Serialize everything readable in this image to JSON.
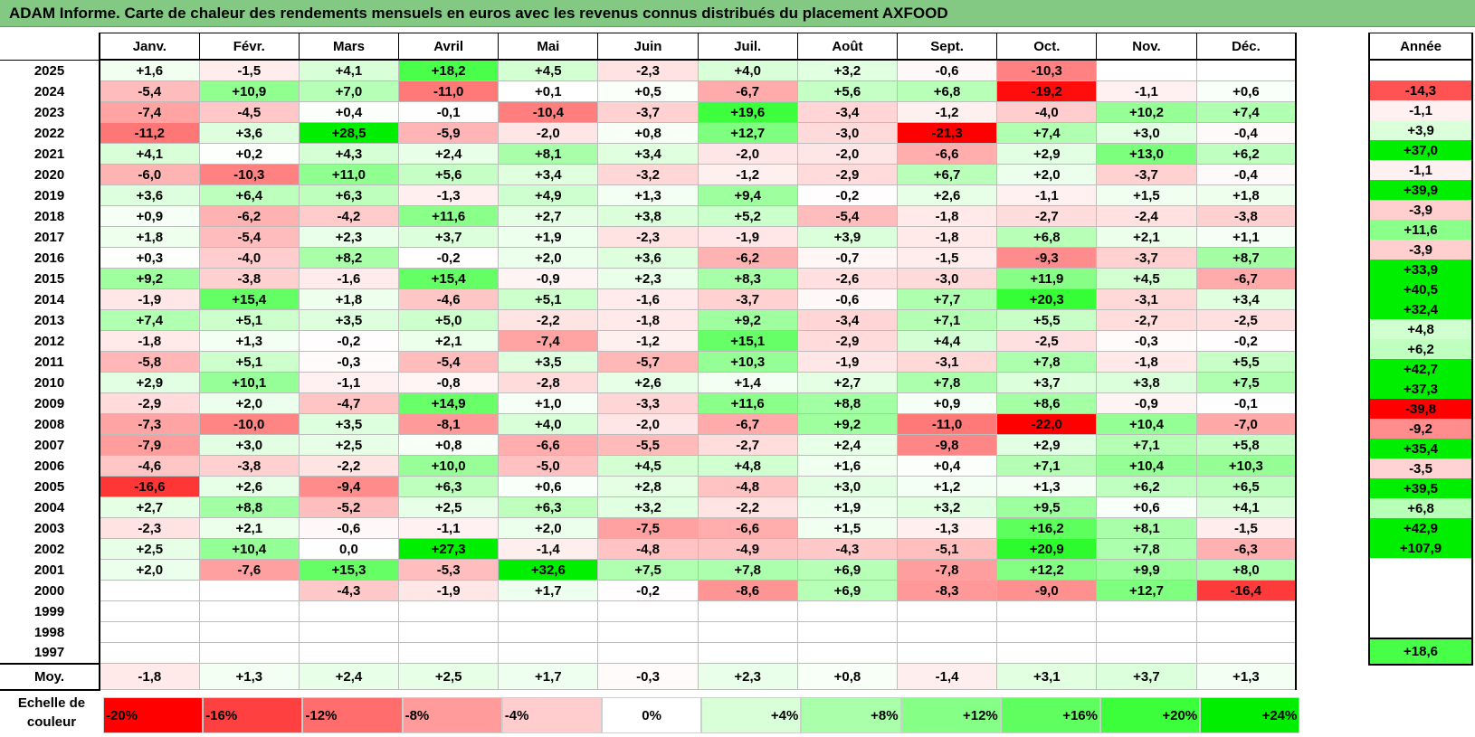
{
  "title": "ADAM Informe. Carte de chaleur des rendements mensuels en euros avec les revenus connus distribués du placement AXFOOD",
  "chart_data": {
    "type": "heatmap",
    "title": "ADAM Informe. Carte de chaleur des rendements mensuels en euros avec les revenus connus distribués du placement AXFOOD",
    "months": [
      "Janv.",
      "Févr.",
      "Mars",
      "Avril",
      "Mai",
      "Juin",
      "Juil.",
      "Août",
      "Sept.",
      "Oct.",
      "Nov.",
      "Déc."
    ],
    "annual_header": "Année",
    "rows": [
      {
        "year": "2025",
        "values": [
          "+1,6",
          "-1,5",
          "+4,1",
          "+18,2",
          "+4,5",
          "-2,3",
          "+4,0",
          "+3,2",
          "-0,6",
          "-10,3",
          "",
          ""
        ],
        "annual": ""
      },
      {
        "year": "2024",
        "values": [
          "-5,4",
          "+10,9",
          "+7,0",
          "-11,0",
          "+0,1",
          "+0,5",
          "-6,7",
          "+5,6",
          "+6,8",
          "-19,2",
          "-1,1",
          "+0,6"
        ],
        "annual": "-14,3"
      },
      {
        "year": "2023",
        "values": [
          "-7,4",
          "-4,5",
          "+0,4",
          "-0,1",
          "-10,4",
          "-3,7",
          "+19,6",
          "-3,4",
          "-1,2",
          "-4,0",
          "+10,2",
          "+7,4"
        ],
        "annual": "-1,1"
      },
      {
        "year": "2022",
        "values": [
          "-11,2",
          "+3,6",
          "+28,5",
          "-5,9",
          "-2,0",
          "+0,8",
          "+12,7",
          "-3,0",
          "-21,3",
          "+7,4",
          "+3,0",
          "-0,4"
        ],
        "annual": "+3,9"
      },
      {
        "year": "2021",
        "values": [
          "+4,1",
          "+0,2",
          "+4,3",
          "+2,4",
          "+8,1",
          "+3,4",
          "-2,0",
          "-2,0",
          "-6,6",
          "+2,9",
          "+13,0",
          "+6,2"
        ],
        "annual": "+37,0"
      },
      {
        "year": "2020",
        "values": [
          "-6,0",
          "-10,3",
          "+11,0",
          "+5,6",
          "+3,4",
          "-3,2",
          "-1,2",
          "-2,9",
          "+6,7",
          "+2,0",
          "-3,7",
          "-0,4"
        ],
        "annual": "-1,1"
      },
      {
        "year": "2019",
        "values": [
          "+3,6",
          "+6,4",
          "+6,3",
          "-1,3",
          "+4,9",
          "+1,3",
          "+9,4",
          "-0,2",
          "+2,6",
          "-1,1",
          "+1,5",
          "+1,8"
        ],
        "annual": "+39,9"
      },
      {
        "year": "2018",
        "values": [
          "+0,9",
          "-6,2",
          "-4,2",
          "+11,6",
          "+2,7",
          "+3,8",
          "+5,2",
          "-5,4",
          "-1,8",
          "-2,7",
          "-2,4",
          "-3,8"
        ],
        "annual": "-3,9"
      },
      {
        "year": "2017",
        "values": [
          "+1,8",
          "-5,4",
          "+2,3",
          "+3,7",
          "+1,9",
          "-2,3",
          "-1,9",
          "+3,9",
          "-1,8",
          "+6,8",
          "+2,1",
          "+1,1"
        ],
        "annual": "+11,6"
      },
      {
        "year": "2016",
        "values": [
          "+0,3",
          "-4,0",
          "+8,2",
          "-0,2",
          "+2,0",
          "+3,6",
          "-6,2",
          "-0,7",
          "-1,5",
          "-9,3",
          "-3,7",
          "+8,7"
        ],
        "annual": "-3,9"
      },
      {
        "year": "2015",
        "values": [
          "+9,2",
          "-3,8",
          "-1,6",
          "+15,4",
          "-0,9",
          "+2,3",
          "+8,3",
          "-2,6",
          "-3,0",
          "+11,9",
          "+4,5",
          "-6,7"
        ],
        "annual": "+33,9"
      },
      {
        "year": "2014",
        "values": [
          "-1,9",
          "+15,4",
          "+1,8",
          "-4,6",
          "+5,1",
          "-1,6",
          "-3,7",
          "-0,6",
          "+7,7",
          "+20,3",
          "-3,1",
          "+3,4"
        ],
        "annual": "+40,5"
      },
      {
        "year": "2013",
        "values": [
          "+7,4",
          "+5,1",
          "+3,5",
          "+5,0",
          "-2,2",
          "-1,8",
          "+9,2",
          "-3,4",
          "+7,1",
          "+5,5",
          "-2,7",
          "-2,5"
        ],
        "annual": "+32,4"
      },
      {
        "year": "2012",
        "values": [
          "-1,8",
          "+1,3",
          "-0,2",
          "+2,1",
          "-7,4",
          "-1,2",
          "+15,1",
          "-2,9",
          "+4,4",
          "-2,5",
          "-0,3",
          "-0,2"
        ],
        "annual": "+4,8"
      },
      {
        "year": "2011",
        "values": [
          "-5,8",
          "+5,1",
          "-0,3",
          "-5,4",
          "+3,5",
          "-5,7",
          "+10,3",
          "-1,9",
          "-3,1",
          "+7,8",
          "-1,8",
          "+5,5"
        ],
        "annual": "+6,2"
      },
      {
        "year": "2010",
        "values": [
          "+2,9",
          "+10,1",
          "-1,1",
          "-0,8",
          "-2,8",
          "+2,6",
          "+1,4",
          "+2,7",
          "+7,8",
          "+3,7",
          "+3,8",
          "+7,5"
        ],
        "annual": "+42,7"
      },
      {
        "year": "2009",
        "values": [
          "-2,9",
          "+2,0",
          "-4,7",
          "+14,9",
          "+1,0",
          "-3,3",
          "+11,6",
          "+8,8",
          "+0,9",
          "+8,6",
          "-0,9",
          "-0,1"
        ],
        "annual": "+37,3"
      },
      {
        "year": "2008",
        "values": [
          "-7,3",
          "-10,0",
          "+3,5",
          "-8,1",
          "+4,0",
          "-2,0",
          "-6,7",
          "+9,2",
          "-11,0",
          "-22,0",
          "+10,4",
          "-7,0"
        ],
        "annual": "-39,8"
      },
      {
        "year": "2007",
        "values": [
          "-7,9",
          "+3,0",
          "+2,5",
          "+0,8",
          "-6,6",
          "-5,5",
          "-2,7",
          "+2,4",
          "-9,8",
          "+2,9",
          "+7,1",
          "+5,8"
        ],
        "annual": "-9,2"
      },
      {
        "year": "2006",
        "values": [
          "-4,6",
          "-3,8",
          "-2,2",
          "+10,0",
          "-5,0",
          "+4,5",
          "+4,8",
          "+1,6",
          "+0,4",
          "+7,1",
          "+10,4",
          "+10,3"
        ],
        "annual": "+35,4"
      },
      {
        "year": "2005",
        "values": [
          "-16,6",
          "+2,6",
          "-9,4",
          "+6,3",
          "+0,6",
          "+2,8",
          "-4,8",
          "+3,0",
          "+1,2",
          "+1,3",
          "+6,2",
          "+6,5"
        ],
        "annual": "-3,5"
      },
      {
        "year": "2004",
        "values": [
          "+2,7",
          "+8,8",
          "-5,2",
          "+2,5",
          "+6,3",
          "+3,2",
          "-2,2",
          "+1,9",
          "+3,2",
          "+9,5",
          "+0,6",
          "+4,1"
        ],
        "annual": "+39,5"
      },
      {
        "year": "2003",
        "values": [
          "-2,3",
          "+2,1",
          "-0,6",
          "-1,1",
          "+2,0",
          "-7,5",
          "-6,6",
          "+1,5",
          "-1,3",
          "+16,2",
          "+8,1",
          "-1,5"
        ],
        "annual": "+6,8"
      },
      {
        "year": "2002",
        "values": [
          "+2,5",
          "+10,4",
          "0,0",
          "+27,3",
          "-1,4",
          "-4,8",
          "-4,9",
          "-4,3",
          "-5,1",
          "+20,9",
          "+7,8",
          "-6,3"
        ],
        "annual": "+42,9"
      },
      {
        "year": "2001",
        "values": [
          "+2,0",
          "-7,6",
          "+15,3",
          "-5,3",
          "+32,6",
          "+7,5",
          "+7,8",
          "+6,9",
          "-7,8",
          "+12,2",
          "+9,9",
          "+8,0"
        ],
        "annual": "+107,9"
      },
      {
        "year": "2000",
        "values": [
          "",
          "",
          "-4,3",
          "-1,9",
          "+1,7",
          "-0,2",
          "-8,6",
          "+6,9",
          "-8,3",
          "-9,0",
          "+12,7",
          "-16,4"
        ],
        "annual": ""
      },
      {
        "year": "1999",
        "values": [
          "",
          "",
          "",
          "",
          "",
          "",
          "",
          "",
          "",
          "",
          "",
          ""
        ],
        "annual": ""
      },
      {
        "year": "1998",
        "values": [
          "",
          "",
          "",
          "",
          "",
          "",
          "",
          "",
          "",
          "",
          "",
          ""
        ],
        "annual": ""
      },
      {
        "year": "1997",
        "values": [
          "",
          "",
          "",
          "",
          "",
          "",
          "",
          "",
          "",
          "",
          "",
          ""
        ],
        "annual": ""
      }
    ],
    "average": {
      "label": "Moy.",
      "values": [
        "-1,8",
        "+1,3",
        "+2,4",
        "+2,5",
        "+1,7",
        "-0,3",
        "+2,3",
        "+0,8",
        "-1,4",
        "+3,1",
        "+3,7",
        "+1,3"
      ],
      "annual": "+18,6"
    },
    "color_scale": {
      "label": "Echelle de couleur",
      "steps": [
        {
          "label": "-20%",
          "value": -20,
          "color": "#ff0000"
        },
        {
          "label": "-16%",
          "value": -16,
          "color": "#ff4040"
        },
        {
          "label": "-12%",
          "value": -12,
          "color": "#ff6d6d"
        },
        {
          "label": "-8%",
          "value": -8,
          "color": "#ff9b9b"
        },
        {
          "label": "-4%",
          "value": -4,
          "color": "#ffcdcd"
        },
        {
          "label": "0%",
          "value": 0,
          "color": "#ffffff"
        },
        {
          "label": "+4%",
          "value": 4,
          "color": "#d9ffd9"
        },
        {
          "label": "+8%",
          "value": 8,
          "color": "#aaffaa"
        },
        {
          "label": "+12%",
          "value": 12,
          "color": "#86ff86"
        },
        {
          "label": "+16%",
          "value": 16,
          "color": "#5eff5e"
        },
        {
          "label": "+20%",
          "value": 20,
          "color": "#3aff3a"
        },
        {
          "label": "+24%",
          "value": 24,
          "color": "#00ee00"
        }
      ]
    }
  }
}
